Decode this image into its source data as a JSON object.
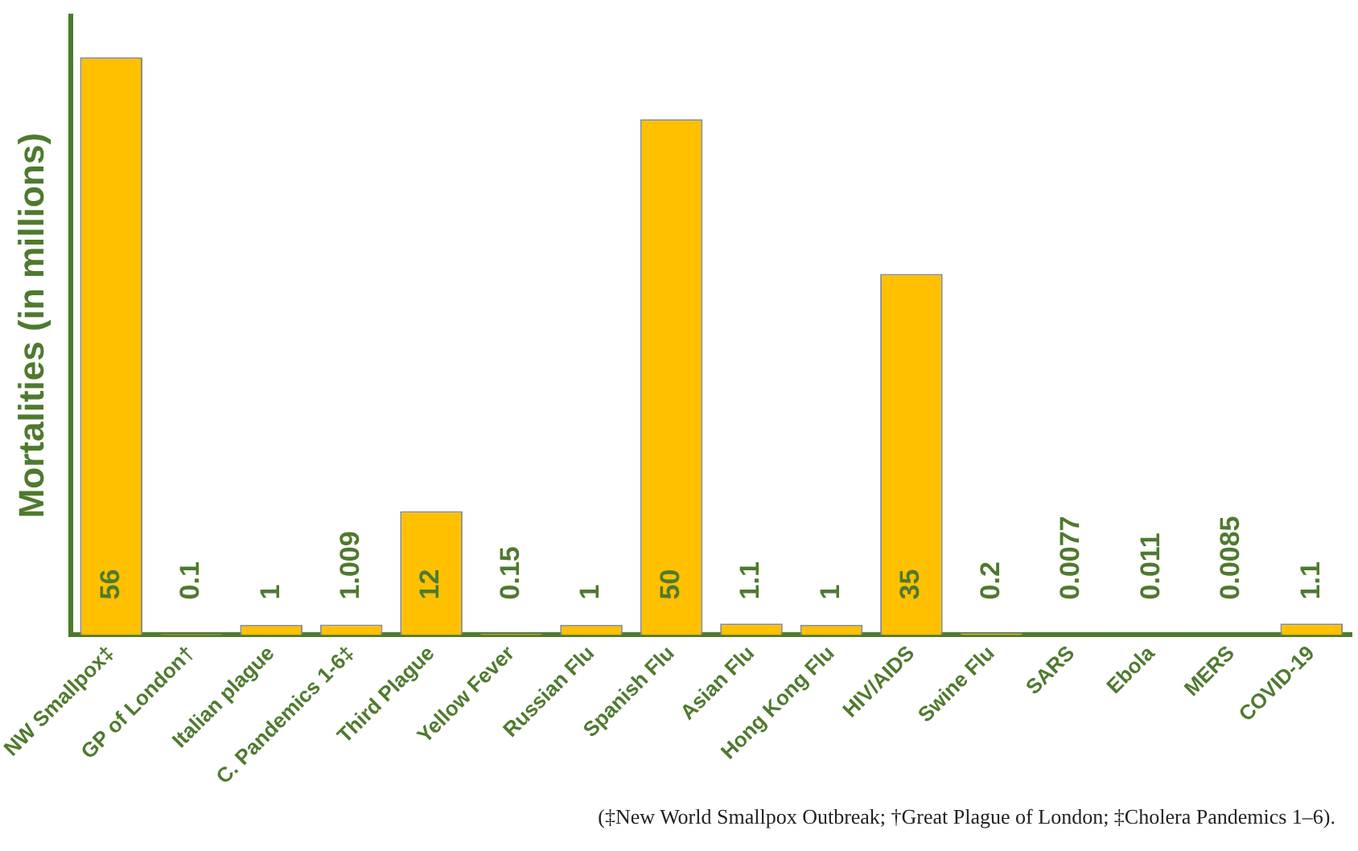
{
  "chart_data": {
    "type": "bar",
    "ylabel": "Mortalities (in millions)",
    "categories": [
      "NW Smallpox‡",
      "GP of London†",
      "Italian plague",
      "C. Pandemics 1-6‡",
      "Third Plague",
      "Yellow Fever",
      "Russian Flu",
      "Spanish Flu",
      "Asian Flu",
      "Hong Kong Flu",
      "HIV/AIDS",
      "Swine Flu",
      "SARS",
      "Ebola",
      "MERS",
      "COVID-19"
    ],
    "values": [
      56,
      0.1,
      1,
      1.009,
      12,
      0.15,
      1,
      50,
      1.1,
      1,
      35,
      0.2,
      0.0077,
      0.011,
      0.0085,
      1.1
    ],
    "color": "#ffc000",
    "data_labels": true,
    "tick_labels": "x",
    "grid": false,
    "legend": false,
    "annotations": [
      "(‡New World Smallpox Outbreak; †Great Plague of London; ‡Cholera Pandemics 1–6)."
    ]
  }
}
